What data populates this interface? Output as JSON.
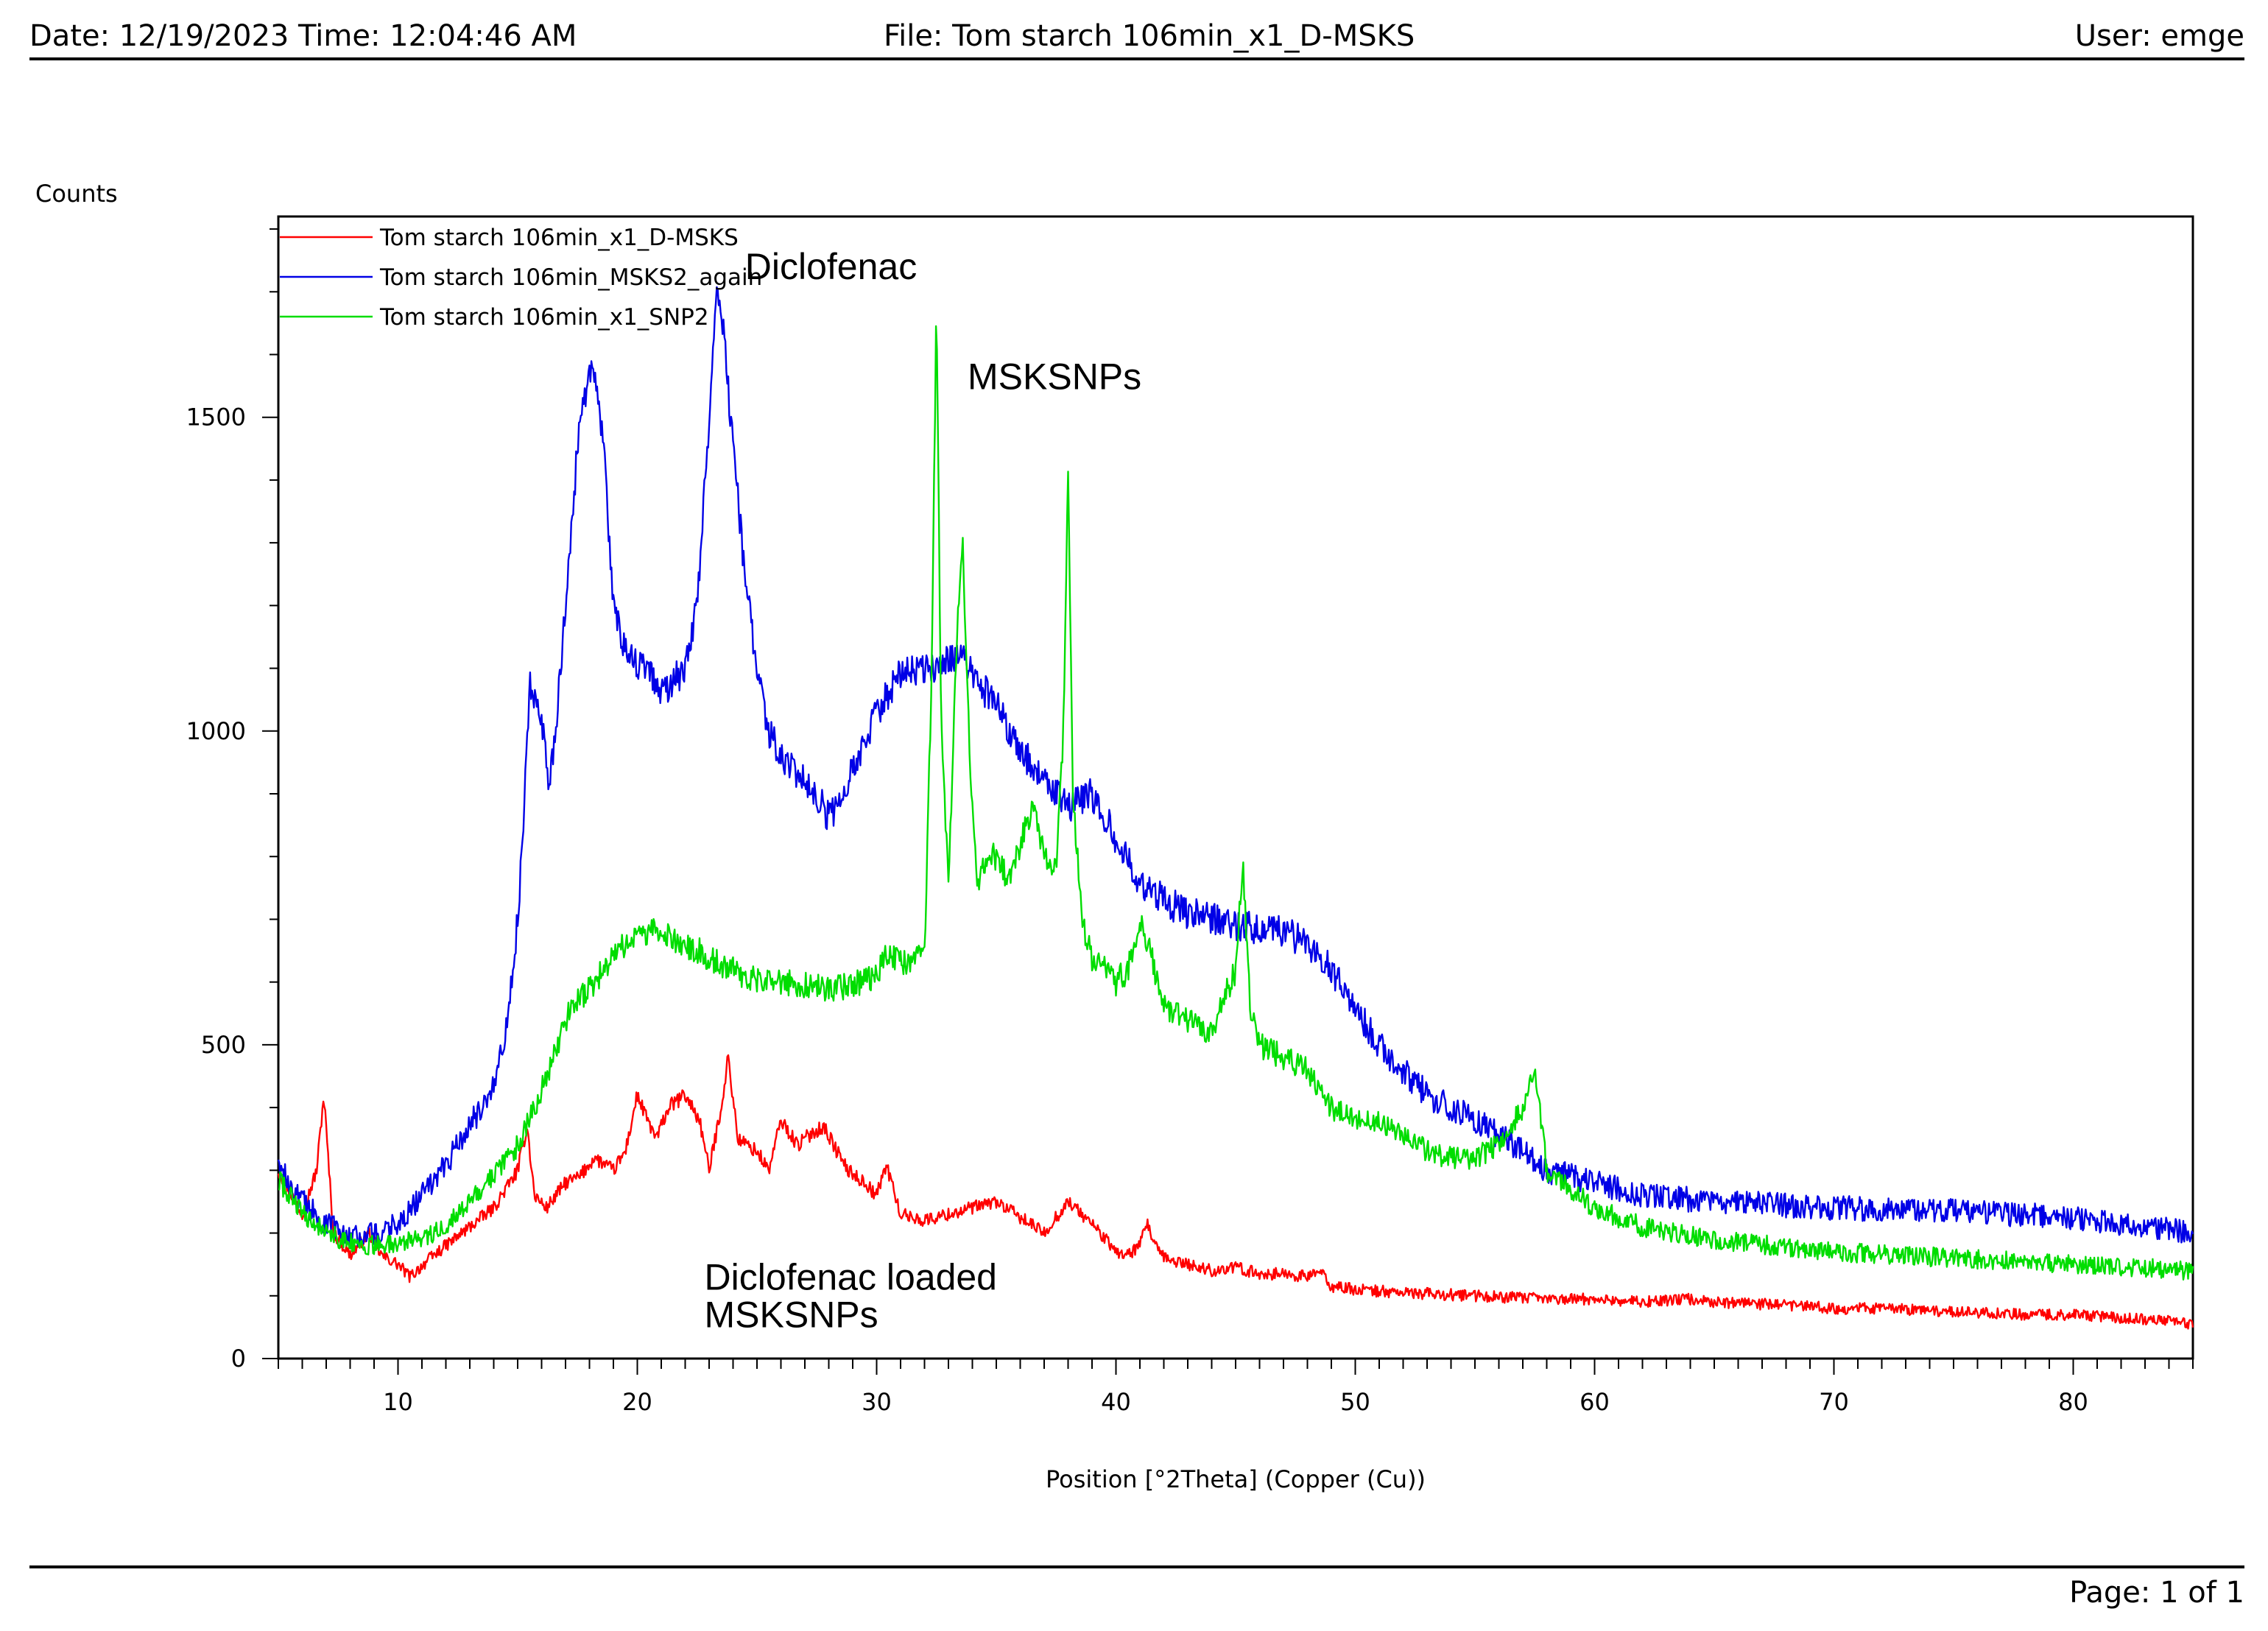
{
  "header": {
    "date_time": "Date: 12/19/2023 Time: 12:04:46 AM",
    "file": "File: Tom starch 106min_x1_D-MSKS",
    "user": "User: emge"
  },
  "footer": {
    "page": "Page: 1 of 1"
  },
  "colors": {
    "red_series": "#ff0000",
    "blue_series": "#0000e6",
    "green_series": "#00dd00",
    "axis": "#000000"
  },
  "chart_data": {
    "type": "line",
    "title": "",
    "ylabel": "Counts",
    "xlabel": "Position [°2Theta] (Copper (Cu))",
    "xlim": [
      5,
      85
    ],
    "ylim": [
      0,
      1820
    ],
    "x_ticks": [
      10,
      20,
      30,
      40,
      50,
      60,
      70,
      80
    ],
    "y_ticks": [
      0,
      500,
      1000,
      1500
    ],
    "grid": false,
    "legend_position": "top-left",
    "annotations": [
      {
        "text": "Diclofenac",
        "x": 24.5,
        "y": 1720
      },
      {
        "text": "MSKSNPs",
        "x": 33.8,
        "y": 1545
      },
      {
        "text": "Diclofenac loaded",
        "x": 22.8,
        "y": 110
      },
      {
        "text": "MSKSNPs",
        "x": 22.8,
        "y": 50
      }
    ],
    "series": [
      {
        "name": "Tom starch 106min_x1_D-MSKS",
        "color": "#ff0000",
        "noise": 14,
        "x": [
          5,
          6,
          6.6,
          6.9,
          7.3,
          8,
          8.8,
          9.3,
          10,
          10.5,
          11.2,
          12,
          13,
          14,
          15,
          15.4,
          15.7,
          16.2,
          17,
          17.6,
          18.2,
          19,
          19.5,
          20,
          20.3,
          20.8,
          21.3,
          22,
          22.6,
          23,
          23.5,
          23.8,
          24.2,
          25,
          25.5,
          26,
          26.7,
          27.3,
          27.8,
          28.2,
          28.8,
          29.5,
          30,
          30.4,
          31,
          32,
          33,
          34,
          35,
          36,
          37,
          38,
          39,
          40,
          40.5,
          41,
          41.3,
          41.7,
          42,
          43,
          44,
          45,
          46,
          47,
          48,
          48.5,
          49,
          50,
          52,
          55,
          58,
          60,
          62,
          64,
          65,
          68,
          70,
          72,
          75,
          78,
          80,
          82,
          84,
          85
        ],
        "values": [
          300,
          230,
          300,
          420,
          200,
          165,
          200,
          165,
          150,
          130,
          155,
          180,
          210,
          240,
          300,
          370,
          260,
          240,
          280,
          290,
          320,
          300,
          330,
          420,
          390,
          350,
          400,
          420,
          380,
          300,
          400,
          480,
          350,
          330,
          300,
          380,
          340,
          360,
          370,
          340,
          300,
          280,
          260,
          310,
          230,
          220,
          230,
          240,
          250,
          225,
          200,
          250,
          215,
          170,
          165,
          180,
          215,
          175,
          160,
          150,
          140,
          145,
          135,
          135,
          130,
          140,
          115,
          110,
          105,
          100,
          95,
          95,
          90,
          95,
          90,
          85,
          80,
          80,
          75,
          70,
          70,
          65,
          60,
          55
        ]
      },
      {
        "name": "Tom starch 106min_MSKS2_again",
        "color": "#0000e6",
        "noise": 26,
        "x": [
          5,
          6,
          7,
          8,
          8.5,
          9,
          10,
          11,
          12,
          13,
          14,
          14.5,
          15,
          15.3,
          15.5,
          16,
          16.3,
          16.6,
          17,
          17.5,
          18,
          18.3,
          18.6,
          19,
          19.5,
          20,
          20.5,
          21,
          21.5,
          22,
          22.5,
          23,
          23.3,
          23.6,
          24,
          24.5,
          25,
          25.5,
          26,
          26.5,
          27,
          27.5,
          28,
          28.5,
          29,
          30,
          31,
          32,
          33,
          33.5,
          34,
          35,
          36,
          37,
          38,
          39,
          40,
          41,
          42,
          43,
          45,
          47,
          48,
          49,
          50,
          51,
          52,
          53,
          55,
          57,
          58,
          60,
          62,
          65,
          70,
          75,
          80,
          85
        ],
        "values": [
          310,
          250,
          215,
          200,
          195,
          200,
          215,
          260,
          310,
          370,
          440,
          520,
          700,
          900,
          1080,
          1020,
          900,
          1000,
          1200,
          1450,
          1580,
          1560,
          1450,
          1200,
          1130,
          1100,
          1100,
          1060,
          1080,
          1100,
          1200,
          1500,
          1720,
          1640,
          1450,
          1250,
          1100,
          1000,
          960,
          940,
          920,
          900,
          860,
          890,
          940,
          1030,
          1090,
          1100,
          1110,
          1125,
          1090,
          1040,
          970,
          920,
          880,
          900,
          830,
          760,
          730,
          710,
          690,
          680,
          660,
          620,
          560,
          500,
          460,
          420,
          380,
          330,
          300,
          280,
          260,
          250,
          240,
          235,
          225,
          200
        ]
      },
      {
        "name": "Tom starch 106min_x1_SNP2",
        "color": "#00dd00",
        "noise": 22,
        "x": [
          5,
          6,
          7,
          8,
          9,
          10,
          11,
          12,
          13,
          14,
          15,
          15.5,
          16,
          16.5,
          17,
          17.5,
          18,
          19,
          20,
          21,
          22,
          23,
          24,
          25,
          26,
          27,
          28,
          29,
          30,
          30.5,
          31,
          32,
          32.3,
          32.5,
          32.7,
          33,
          33.4,
          33.6,
          33.9,
          34.2,
          34.6,
          35,
          35.5,
          36,
          36.5,
          37,
          37.5,
          37.8,
          38,
          38.2,
          38.6,
          39,
          39.5,
          40,
          40.5,
          41,
          41.5,
          42,
          43,
          44,
          45,
          45.3,
          45.6,
          46,
          47,
          48,
          49,
          50,
          51,
          52,
          53,
          54,
          55,
          56,
          57,
          57.5,
          58,
          59,
          60,
          62,
          65,
          70,
          75,
          80,
          85
        ],
        "values": [
          285,
          230,
          200,
          185,
          180,
          185,
          190,
          210,
          250,
          290,
          340,
          380,
          430,
          480,
          540,
          570,
          590,
          640,
          680,
          680,
          660,
          640,
          620,
          600,
          600,
          595,
          590,
          595,
          610,
          650,
          630,
          640,
          1100,
          1690,
          1000,
          760,
          1200,
          1290,
          950,
          760,
          800,
          800,
          760,
          820,
          880,
          800,
          780,
          1000,
          1420,
          900,
          690,
          640,
          620,
          600,
          620,
          700,
          640,
          560,
          540,
          520,
          620,
          800,
          560,
          500,
          480,
          460,
          400,
          380,
          380,
          360,
          330,
          320,
          320,
          340,
          400,
          470,
          300,
          270,
          240,
          210,
          190,
          170,
          160,
          150,
          140
        ]
      }
    ]
  }
}
